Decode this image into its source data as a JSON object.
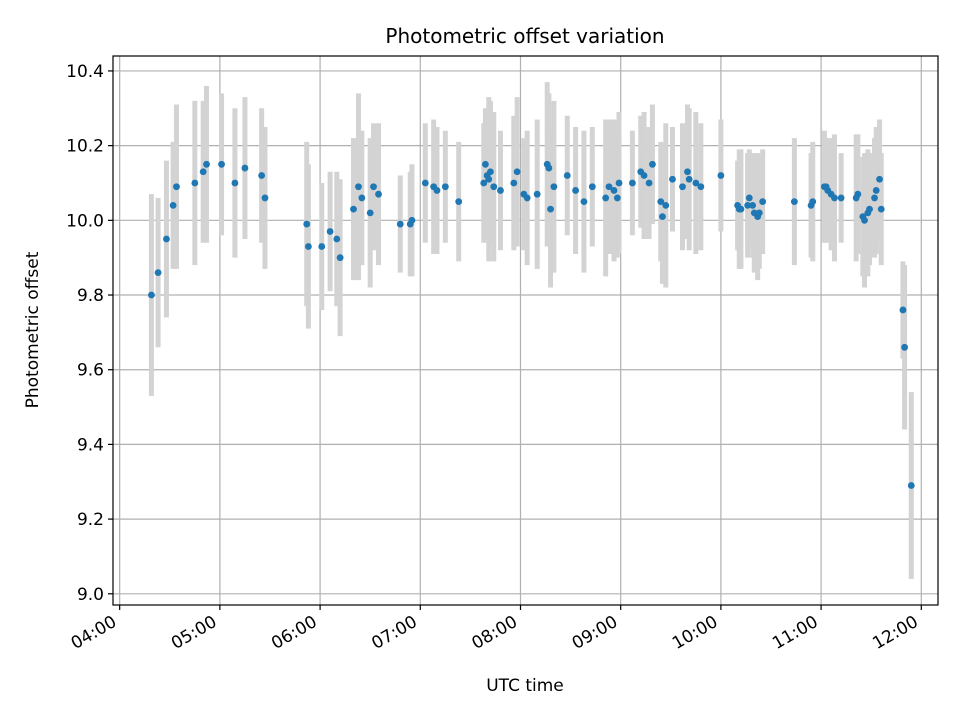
{
  "chart_data": {
    "type": "scatter",
    "title": "Photometric offset variation",
    "xlabel": "UTC time",
    "ylabel": "Photometric offset",
    "xlim": [
      "03:56",
      "12:10"
    ],
    "ylim": [
      8.97,
      10.44
    ],
    "x_ticks": [
      "04:00",
      "05:00",
      "06:00",
      "07:00",
      "08:00",
      "09:00",
      "10:00",
      "11:00",
      "12:00"
    ],
    "y_ticks": [
      "9.0",
      "9.2",
      "9.4",
      "9.6",
      "9.8",
      "10.0",
      "10.2",
      "10.4"
    ],
    "grid": true,
    "point_color": "#1f77b4",
    "errorbar_color": "#d3d3d3",
    "series": [
      {
        "points": [
          {
            "x": "04:19",
            "y": 9.8,
            "err": 0.27
          },
          {
            "x": "04:23",
            "y": 9.86,
            "err": 0.2
          },
          {
            "x": "04:28",
            "y": 9.95,
            "err": 0.21
          },
          {
            "x": "04:32",
            "y": 10.04,
            "err": 0.17
          },
          {
            "x": "04:34",
            "y": 10.09,
            "err": 0.22
          },
          {
            "x": "04:45",
            "y": 10.1,
            "err": 0.22
          },
          {
            "x": "04:50",
            "y": 10.13,
            "err": 0.19
          },
          {
            "x": "04:52",
            "y": 10.15,
            "err": 0.21
          },
          {
            "x": "05:01",
            "y": 10.15,
            "err": 0.19
          },
          {
            "x": "05:09",
            "y": 10.1,
            "err": 0.2
          },
          {
            "x": "05:15",
            "y": 10.14,
            "err": 0.19
          },
          {
            "x": "05:25",
            "y": 10.12,
            "err": 0.18
          },
          {
            "x": "05:27",
            "y": 10.06,
            "err": 0.19
          },
          {
            "x": "05:52",
            "y": 9.99,
            "err": 0.22
          },
          {
            "x": "05:53",
            "y": 9.93,
            "err": 0.22
          },
          {
            "x": "06:01",
            "y": 9.93,
            "err": 0.17
          },
          {
            "x": "06:06",
            "y": 9.97,
            "err": 0.16
          },
          {
            "x": "06:10",
            "y": 9.95,
            "err": 0.18
          },
          {
            "x": "06:12",
            "y": 9.9,
            "err": 0.21
          },
          {
            "x": "06:20",
            "y": 10.03,
            "err": 0.19
          },
          {
            "x": "06:23",
            "y": 10.09,
            "err": 0.25
          },
          {
            "x": "06:25",
            "y": 10.06,
            "err": 0.18
          },
          {
            "x": "06:30",
            "y": 10.02,
            "err": 0.2
          },
          {
            "x": "06:32",
            "y": 10.09,
            "err": 0.17
          },
          {
            "x": "06:35",
            "y": 10.07,
            "err": 0.19
          },
          {
            "x": "06:48",
            "y": 9.99,
            "err": 0.13
          },
          {
            "x": "06:54",
            "y": 9.99,
            "err": 0.14
          },
          {
            "x": "06:55",
            "y": 10.0,
            "err": 0.15
          },
          {
            "x": "07:03",
            "y": 10.1,
            "err": 0.16
          },
          {
            "x": "07:08",
            "y": 10.09,
            "err": 0.18
          },
          {
            "x": "07:10",
            "y": 10.08,
            "err": 0.17
          },
          {
            "x": "07:15",
            "y": 10.09,
            "err": 0.15
          },
          {
            "x": "07:23",
            "y": 10.05,
            "err": 0.16
          },
          {
            "x": "07:38",
            "y": 10.1,
            "err": 0.16
          },
          {
            "x": "07:39",
            "y": 10.15,
            "err": 0.15
          },
          {
            "x": "07:40",
            "y": 10.12,
            "err": 0.17
          },
          {
            "x": "07:41",
            "y": 10.11,
            "err": 0.22
          },
          {
            "x": "07:42",
            "y": 10.13,
            "err": 0.19
          },
          {
            "x": "07:44",
            "y": 10.09,
            "err": 0.2
          },
          {
            "x": "07:48",
            "y": 10.08,
            "err": 0.16
          },
          {
            "x": "07:56",
            "y": 10.1,
            "err": 0.18
          },
          {
            "x": "07:58",
            "y": 10.13,
            "err": 0.2
          },
          {
            "x": "08:02",
            "y": 10.07,
            "err": 0.15
          },
          {
            "x": "08:04",
            "y": 10.06,
            "err": 0.18
          },
          {
            "x": "08:10",
            "y": 10.07,
            "err": 0.2
          },
          {
            "x": "08:16",
            "y": 10.15,
            "err": 0.22
          },
          {
            "x": "08:17",
            "y": 10.14,
            "err": 0.2
          },
          {
            "x": "08:18",
            "y": 10.03,
            "err": 0.21
          },
          {
            "x": "08:20",
            "y": 10.09,
            "err": 0.23
          },
          {
            "x": "08:28",
            "y": 10.12,
            "err": 0.16
          },
          {
            "x": "08:33",
            "y": 10.08,
            "err": 0.17
          },
          {
            "x": "08:38",
            "y": 10.05,
            "err": 0.19
          },
          {
            "x": "08:43",
            "y": 10.09,
            "err": 0.16
          },
          {
            "x": "08:51",
            "y": 10.06,
            "err": 0.21
          },
          {
            "x": "08:53",
            "y": 10.09,
            "err": 0.18
          },
          {
            "x": "08:56",
            "y": 10.08,
            "err": 0.19
          },
          {
            "x": "08:58",
            "y": 10.06,
            "err": 0.16
          },
          {
            "x": "08:59",
            "y": 10.1,
            "err": 0.19
          },
          {
            "x": "09:07",
            "y": 10.1,
            "err": 0.14
          },
          {
            "x": "09:12",
            "y": 10.13,
            "err": 0.15
          },
          {
            "x": "09:14",
            "y": 10.12,
            "err": 0.17
          },
          {
            "x": "09:17",
            "y": 10.1,
            "err": 0.15
          },
          {
            "x": "09:19",
            "y": 10.15,
            "err": 0.16
          },
          {
            "x": "09:24",
            "y": 10.05,
            "err": 0.16
          },
          {
            "x": "09:25",
            "y": 10.01,
            "err": 0.18
          },
          {
            "x": "09:27",
            "y": 10.04,
            "err": 0.22
          },
          {
            "x": "09:31",
            "y": 10.11,
            "err": 0.14
          },
          {
            "x": "09:37",
            "y": 10.09,
            "err": 0.17
          },
          {
            "x": "09:40",
            "y": 10.13,
            "err": 0.18
          },
          {
            "x": "09:41",
            "y": 10.11,
            "err": 0.19
          },
          {
            "x": "09:45",
            "y": 10.1,
            "err": 0.19
          },
          {
            "x": "09:48",
            "y": 10.09,
            "err": 0.17
          },
          {
            "x": "10:00",
            "y": 10.12,
            "err": 0.15
          },
          {
            "x": "10:10",
            "y": 10.04,
            "err": 0.12
          },
          {
            "x": "10:11",
            "y": 10.03,
            "err": 0.16
          },
          {
            "x": "10:12",
            "y": 10.03,
            "err": 0.16
          },
          {
            "x": "10:16",
            "y": 10.04,
            "err": 0.14
          },
          {
            "x": "10:17",
            "y": 10.06,
            "err": 0.13
          },
          {
            "x": "10:19",
            "y": 10.04,
            "err": 0.14
          },
          {
            "x": "10:20",
            "y": 10.02,
            "err": 0.16
          },
          {
            "x": "10:22",
            "y": 10.01,
            "err": 0.17
          },
          {
            "x": "10:23",
            "y": 10.02,
            "err": 0.15
          },
          {
            "x": "10:25",
            "y": 10.05,
            "err": 0.14
          },
          {
            "x": "10:44",
            "y": 10.05,
            "err": 0.17
          },
          {
            "x": "10:54",
            "y": 10.04,
            "err": 0.14
          },
          {
            "x": "10:55",
            "y": 10.05,
            "err": 0.16
          },
          {
            "x": "11:02",
            "y": 10.09,
            "err": 0.15
          },
          {
            "x": "11:03",
            "y": 10.09,
            "err": 0.13
          },
          {
            "x": "11:04",
            "y": 10.08,
            "err": 0.14
          },
          {
            "x": "11:06",
            "y": 10.07,
            "err": 0.15
          },
          {
            "x": "11:08",
            "y": 10.06,
            "err": 0.17
          },
          {
            "x": "11:12",
            "y": 10.06,
            "err": 0.12
          },
          {
            "x": "11:21",
            "y": 10.06,
            "err": 0.17
          },
          {
            "x": "11:22",
            "y": 10.07,
            "err": 0.16
          },
          {
            "x": "11:25",
            "y": 10.01,
            "err": 0.16
          },
          {
            "x": "11:26",
            "y": 10.0,
            "err": 0.18
          },
          {
            "x": "11:28",
            "y": 10.02,
            "err": 0.17
          },
          {
            "x": "11:29",
            "y": 10.03,
            "err": 0.15
          },
          {
            "x": "11:32",
            "y": 10.06,
            "err": 0.16
          },
          {
            "x": "11:33",
            "y": 10.08,
            "err": 0.17
          },
          {
            "x": "11:35",
            "y": 10.11,
            "err": 0.16
          },
          {
            "x": "11:36",
            "y": 10.03,
            "err": 0.15
          },
          {
            "x": "11:49",
            "y": 9.76,
            "err": 0.13
          },
          {
            "x": "11:50",
            "y": 9.66,
            "err": 0.22
          },
          {
            "x": "11:54",
            "y": 9.29,
            "err": 0.25
          }
        ]
      }
    ]
  }
}
